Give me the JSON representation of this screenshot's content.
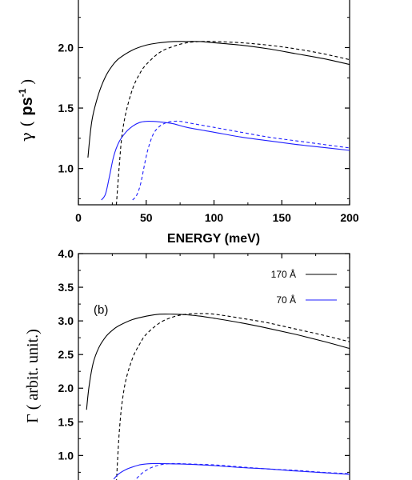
{
  "chart_data": [
    {
      "type": "line",
      "panel": "a",
      "xlabel": "ENERGY  (meV)",
      "ylabel": "γ  ( ps⁻¹ )",
      "xlim": [
        0,
        200
      ],
      "ylim": [
        0.7,
        2.4
      ],
      "xticks": [
        0,
        50,
        100,
        150,
        200
      ],
      "xtick_labels": [
        "0",
        "50",
        "100",
        "150",
        "200"
      ],
      "yticks": [
        1.0,
        1.5,
        2.0
      ],
      "ytick_labels": [
        "1.0",
        "1.5",
        "2.0"
      ],
      "colors": {
        "black": "#000000",
        "blue": "#1f1fff"
      },
      "series": [
        {
          "color": "black",
          "style": "solid",
          "x": [
            7,
            10,
            15,
            20,
            25,
            30,
            40,
            50,
            60,
            70,
            80,
            90,
            100,
            120,
            140,
            160,
            180,
            200
          ],
          "y": [
            1.09,
            1.4,
            1.62,
            1.76,
            1.85,
            1.91,
            1.98,
            2.02,
            2.04,
            2.05,
            2.05,
            2.05,
            2.04,
            2.02,
            1.99,
            1.95,
            1.91,
            1.86
          ]
        },
        {
          "color": "black",
          "style": "dashed",
          "x": [
            28,
            30,
            32,
            35,
            40,
            45,
            50,
            60,
            70,
            80,
            90,
            100,
            120,
            140,
            160,
            180,
            200
          ],
          "y": [
            0.7,
            1.0,
            1.26,
            1.46,
            1.66,
            1.78,
            1.86,
            1.96,
            2.01,
            2.04,
            2.05,
            2.05,
            2.04,
            2.02,
            1.99,
            1.95,
            1.9
          ]
        },
        {
          "color": "blue",
          "style": "solid",
          "x": [
            17,
            20,
            23,
            26,
            30,
            35,
            40,
            45,
            50,
            55,
            60,
            70,
            80,
            100,
            120,
            140,
            160,
            180,
            200
          ],
          "y": [
            0.74,
            0.79,
            0.94,
            1.1,
            1.22,
            1.3,
            1.35,
            1.38,
            1.39,
            1.39,
            1.385,
            1.37,
            1.34,
            1.3,
            1.26,
            1.23,
            1.2,
            1.175,
            1.15
          ]
        },
        {
          "color": "blue",
          "style": "dashed",
          "x": [
            40,
            43,
            46,
            50,
            53,
            56,
            60,
            65,
            70,
            75,
            80,
            100,
            120,
            140,
            160,
            180,
            200
          ],
          "y": [
            0.74,
            0.78,
            0.88,
            1.1,
            1.22,
            1.3,
            1.35,
            1.38,
            1.39,
            1.39,
            1.38,
            1.34,
            1.3,
            1.26,
            1.23,
            1.2,
            1.17
          ]
        }
      ]
    },
    {
      "type": "line",
      "panel": "b",
      "panel_label": "(b)",
      "ylabel": "Γ ( arbit. unit.)",
      "xlim": [
        0,
        200
      ],
      "ylim": [
        0.6,
        4.0
      ],
      "yticks": [
        1.0,
        1.5,
        2.0,
        2.5,
        3.0,
        3.5,
        4.0
      ],
      "ytick_labels": [
        "1.0",
        "1.5",
        "2.0",
        "2.5",
        "3.0",
        "3.5",
        "4.0"
      ],
      "legend": [
        {
          "label": "170 Å",
          "color": "black"
        },
        {
          "label": "70 Å",
          "color": "blue"
        }
      ],
      "legend_position": "top-right",
      "colors": {
        "black": "#000000",
        "blue": "#1f1fff"
      },
      "series": [
        {
          "color": "black",
          "style": "solid",
          "x": [
            6,
            8,
            11,
            15,
            20,
            25,
            30,
            40,
            50,
            60,
            70,
            80,
            90,
            100,
            120,
            140,
            160,
            180,
            200
          ],
          "y": [
            1.68,
            2.05,
            2.38,
            2.6,
            2.76,
            2.86,
            2.93,
            3.02,
            3.07,
            3.1,
            3.1,
            3.09,
            3.07,
            3.04,
            2.97,
            2.89,
            2.8,
            2.7,
            2.59
          ]
        },
        {
          "color": "black",
          "style": "dashed",
          "x": [
            28,
            30,
            32,
            35,
            40,
            45,
            50,
            60,
            70,
            80,
            90,
            100,
            120,
            140,
            160,
            180,
            200
          ],
          "y": [
            0.6,
            1.3,
            1.75,
            2.12,
            2.45,
            2.65,
            2.8,
            2.97,
            3.06,
            3.1,
            3.11,
            3.1,
            3.04,
            2.97,
            2.88,
            2.79,
            2.69
          ]
        },
        {
          "color": "blue",
          "style": "solid",
          "x": [
            26,
            30,
            35,
            40,
            45,
            50,
            55,
            60,
            70,
            80,
            100,
            120,
            140,
            160,
            180,
            200
          ],
          "y": [
            0.65,
            0.73,
            0.79,
            0.83,
            0.86,
            0.875,
            0.88,
            0.88,
            0.875,
            0.87,
            0.85,
            0.82,
            0.8,
            0.77,
            0.745,
            0.72
          ]
        },
        {
          "color": "blue",
          "style": "dashed",
          "x": [
            40,
            43,
            46,
            50,
            55,
            60,
            65,
            70,
            75,
            80,
            100,
            120,
            140,
            160,
            180,
            200
          ],
          "y": [
            0.6,
            0.66,
            0.72,
            0.78,
            0.83,
            0.86,
            0.875,
            0.88,
            0.88,
            0.875,
            0.86,
            0.83,
            0.8,
            0.78,
            0.75,
            0.73
          ]
        }
      ]
    }
  ]
}
